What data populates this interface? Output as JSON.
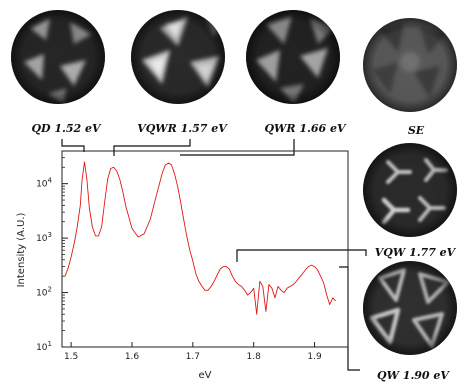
{
  "chart_data": {
    "type": "line",
    "title": "",
    "xlabel": "eV",
    "ylabel": "Intensity (A.U.)",
    "xlim": [
      1.485,
      1.955
    ],
    "ylim_log10": [
      1,
      4.6
    ],
    "y_scale": "log",
    "grid": false,
    "line_color": "#e01818",
    "x_ticks": [
      1.5,
      1.6,
      1.7,
      1.8,
      1.9
    ],
    "x_tick_labels": [
      "1.5",
      "1.6",
      "1.7",
      "1.8",
      "1.9"
    ],
    "y_ticks": [
      10,
      100,
      1000,
      10000
    ],
    "y_tick_labels": [
      "10",
      "10",
      "10",
      "10"
    ],
    "y_tick_exponents": [
      "1",
      "2",
      "3",
      "4"
    ],
    "series": [
      {
        "name": "",
        "x": [
          1.49,
          1.495,
          1.5,
          1.505,
          1.51,
          1.515,
          1.518,
          1.522,
          1.526,
          1.53,
          1.535,
          1.54,
          1.545,
          1.55,
          1.555,
          1.56,
          1.565,
          1.57,
          1.575,
          1.58,
          1.585,
          1.59,
          1.6,
          1.61,
          1.62,
          1.63,
          1.64,
          1.65,
          1.655,
          1.66,
          1.665,
          1.67,
          1.675,
          1.68,
          1.685,
          1.69,
          1.695,
          1.7,
          1.705,
          1.71,
          1.715,
          1.72,
          1.725,
          1.73,
          1.735,
          1.74,
          1.745,
          1.75,
          1.755,
          1.76,
          1.765,
          1.77,
          1.775,
          1.78,
          1.785,
          1.79,
          1.795,
          1.8,
          1.805,
          1.81,
          1.815,
          1.82,
          1.825,
          1.83,
          1.835,
          1.84,
          1.845,
          1.85,
          1.855,
          1.86,
          1.865,
          1.87,
          1.875,
          1.88,
          1.885,
          1.89,
          1.895,
          1.9,
          1.905,
          1.91,
          1.915,
          1.92,
          1.925,
          1.93,
          1.935
        ],
        "y": [
          200,
          280,
          450,
          800,
          1600,
          4000,
          12000,
          25000,
          12000,
          3500,
          1600,
          1100,
          1100,
          1600,
          4500,
          12000,
          19000,
          20000,
          17000,
          12000,
          7000,
          3800,
          1500,
          1050,
          1200,
          2200,
          6000,
          16000,
          22000,
          24000,
          22000,
          15000,
          9000,
          4500,
          2200,
          1100,
          600,
          380,
          220,
          160,
          130,
          110,
          110,
          130,
          160,
          210,
          270,
          300,
          300,
          270,
          200,
          160,
          140,
          130,
          110,
          90,
          100,
          120,
          40,
          160,
          130,
          45,
          140,
          120,
          80,
          130,
          110,
          100,
          120,
          130,
          140,
          160,
          190,
          220,
          260,
          300,
          320,
          300,
          260,
          200,
          150,
          90,
          60,
          80,
          70
        ]
      }
    ]
  },
  "image_labels": {
    "qd": "QD 1.52 eV",
    "vqwr": "VQWR 1.57 eV",
    "qwr": "QWR 1.66 eV",
    "se": "SE",
    "vqw": "VQW 1.77 eV",
    "qw": "QW 1.90 eV"
  },
  "image_panels": [
    {
      "name": "qd",
      "brightness": "medium"
    },
    {
      "name": "vqwr",
      "brightness": "bright"
    },
    {
      "name": "qwr",
      "brightness": "medium"
    },
    {
      "name": "se",
      "brightness": "dim"
    },
    {
      "name": "vqw",
      "brightness": "medium"
    },
    {
      "name": "qw",
      "brightness": "medium"
    }
  ]
}
